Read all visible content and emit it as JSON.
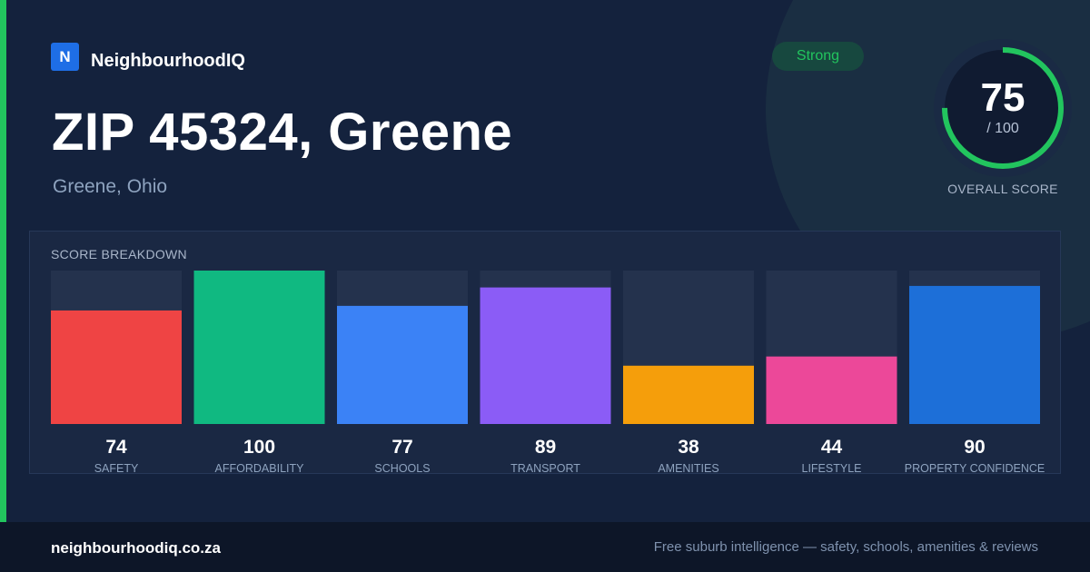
{
  "brand": {
    "logo_letter": "N",
    "name": "NeighbourhoodIQ"
  },
  "page": {
    "title": "ZIP 45324, Greene",
    "subtitle": "Greene, Ohio"
  },
  "badge": {
    "label": "Strong",
    "color": "#22c55e"
  },
  "overall": {
    "score": "75",
    "max_label": "/ 100",
    "caption": "OVERALL SCORE",
    "value": 75,
    "max": 100,
    "ring_color": "#22c55e"
  },
  "breakdown": {
    "title": "SCORE BREAKDOWN"
  },
  "chart_data": {
    "type": "bar",
    "title": "SCORE BREAKDOWN",
    "categories": [
      "SAFETY",
      "AFFORDABILITY",
      "SCHOOLS",
      "TRANSPORT",
      "AMENITIES",
      "LIFESTYLE",
      "PROPERTY CONFIDENCE"
    ],
    "values": [
      74,
      100,
      77,
      89,
      38,
      44,
      90
    ],
    "colors": [
      "#ef4444",
      "#10b981",
      "#3b82f6",
      "#8b5cf6",
      "#f59e0b",
      "#ec4899",
      "#1d6fd8"
    ],
    "ylim": [
      0,
      100
    ],
    "grid": false
  },
  "footer": {
    "url": "neighbourhoodiq.co.za",
    "tagline": "Free suburb intelligence — safety, schools, amenities & reviews"
  },
  "colors": {
    "accent": "#22c55e",
    "background": "#14223d",
    "track": "#24324d"
  }
}
